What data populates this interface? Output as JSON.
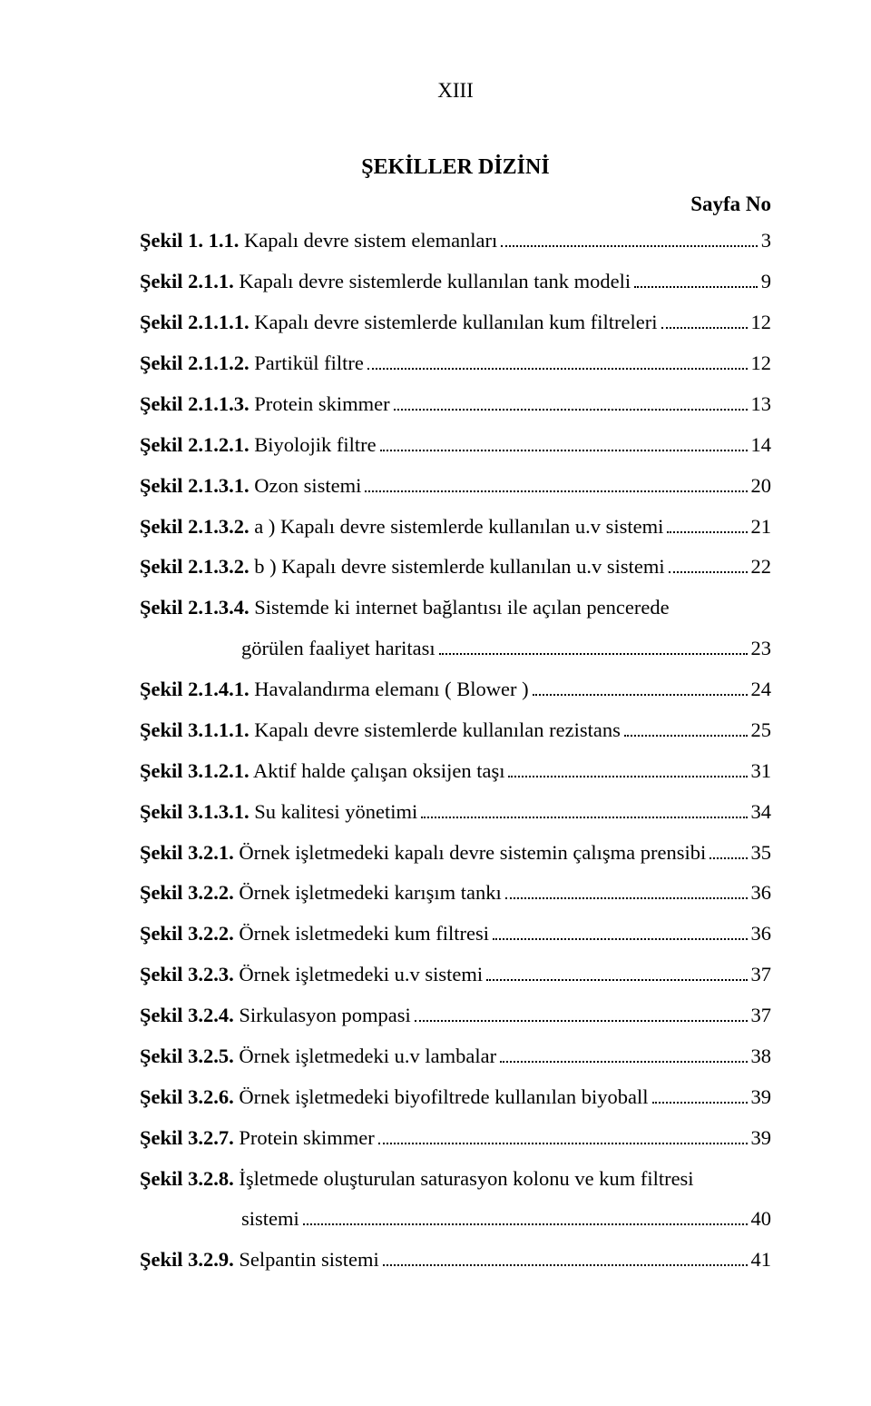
{
  "roman": "XIII",
  "title": "ŞEKİLLER DİZİNİ",
  "sayfa_no_label": "Sayfa No",
  "entries": [
    {
      "bold": "Şekil 1. 1.1.",
      "text": " Kapalı devre sistem elemanları",
      "page": "3"
    },
    {
      "bold": "Şekil 2.1.1.",
      "text": " Kapalı devre sistemlerde kullanılan tank modeli",
      "page": "9"
    },
    {
      "bold": "Şekil  2.1.1.1.",
      "text": " Kapalı devre sistemlerde kullanılan kum filtreleri",
      "page": "12"
    },
    {
      "bold": "Şekil 2.1.1.2.",
      "text": " Partikül filtre",
      "page": "12"
    },
    {
      "bold": "Şekil 2.1.1.3.",
      "text": " Protein skimmer",
      "page": "13"
    },
    {
      "bold": "Şekil 2.1.2.1.",
      "text": " Biyolojik filtre",
      "page": "14"
    },
    {
      "bold": "Şekil 2.1.3.1.",
      "text": " Ozon sistemi",
      "page": "20"
    },
    {
      "bold": "Şekil 2.1.3.2.",
      "text": " a ) Kapalı devre sistemlerde kullanılan u.v sistemi",
      "page": "21"
    },
    {
      "bold": "Şekil 2.1.3.2.",
      "text": " b ) Kapalı devre sistemlerde kullanılan u.v sistemi",
      "page": "22"
    },
    {
      "bold": "Şekil 2.1.3.4.",
      "text": " Sistemde ki internet bağlantısı ile açılan pencerede",
      "text2": "görülen faaliyet haritası",
      "page": "23",
      "twoLine": true
    },
    {
      "bold": "Şekil  2.1.4.1.",
      "text": " Havalandırma elemanı ( Blower )",
      "page": "24"
    },
    {
      "bold": "Şekil 3.1.1.1.",
      "text": "  Kapalı devre sistemlerde kullanılan rezistans",
      "page": "25"
    },
    {
      "bold": "Şekil 3.1.2.1.",
      "text": " Aktif halde çalışan oksijen taşı",
      "page": "31"
    },
    {
      "bold": "Şekil 3.1.3.1.",
      "text": "  Su kalitesi yönetimi",
      "page": "34"
    },
    {
      "bold": "Şekil 3.2.1.",
      "text": "  Örnek işletmedeki kapalı devre sistemin çalışma prensibi",
      "page": "35"
    },
    {
      "bold": "Şekil 3.2.2.",
      "text": "  Örnek işletmedeki karışım tankı",
      "page": "36"
    },
    {
      "bold": "Şekil 3.2.2.",
      "text": " Örnek isletmedeki kum filtresi",
      "page": "36"
    },
    {
      "bold": "Şekil 3.2.3.",
      "text": " Örnek işletmedeki u.v sistemi",
      "page": "37"
    },
    {
      "bold": "Şekil 3.2.4.",
      "text": " Sirkulasyon pompasi",
      "page": "37"
    },
    {
      "bold": " Şekil  3.2.5.",
      "text": " Örnek işletmedeki u.v lambalar",
      "page": "38"
    },
    {
      "bold": "Şekil 3.2.6.",
      "text": " Örnek işletmedeki biyofiltrede kullanılan biyoball",
      "page": "39"
    },
    {
      "bold": "Şekil 3.2.7.",
      "text": " Protein skimmer",
      "page": "39"
    },
    {
      "bold": "Şekil 3.2.8.",
      "text": "  İşletmede oluşturulan saturasyon kolonu ve kum filtresi",
      "text2": "sistemi",
      "page": "40",
      "twoLine": true
    },
    {
      "bold": "Şekil 3.2.9.",
      "text": "  Selpantin sistemi",
      "page": "41"
    }
  ]
}
